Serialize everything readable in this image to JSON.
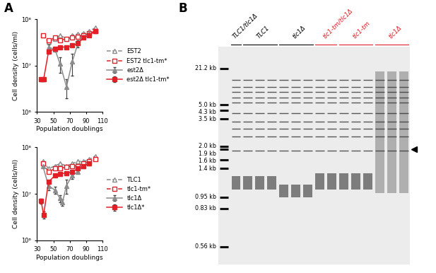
{
  "chart_data": [
    {
      "type": "line",
      "label": "A",
      "log": "y",
      "x_label": "Population doublings",
      "y_label": "Cell density (cells/ml)",
      "xlim": [
        30,
        110
      ],
      "xticks": [
        30,
        50,
        70,
        90,
        110
      ],
      "ylim": [
        1000000,
        100000000
      ],
      "yticks": [
        {
          "value": 1000000,
          "label": "10⁶"
        },
        {
          "value": 10000000,
          "label": "10⁷"
        },
        {
          "value": 100000000,
          "label": "10⁸"
        }
      ],
      "legend": "center left",
      "series": [
        {
          "name": "EST2",
          "color": "#8c8c8c",
          "line_style": "dashed",
          "marker": "triangle-open",
          "x": [
            37,
            44,
            52,
            58,
            66,
            73,
            80,
            87,
            94,
            101
          ],
          "values": [
            45000000,
            32000000,
            38000000,
            45000000,
            38000000,
            45000000,
            48000000,
            50000000,
            55000000,
            65000000
          ]
        },
        {
          "name": "EST2 tlc1-tm*",
          "color": "#e41e26",
          "line_style": "dashed",
          "marker": "square-open",
          "x": [
            37,
            44,
            52,
            58,
            66,
            73,
            80,
            87,
            94,
            101
          ],
          "values": [
            45000000,
            35000000,
            40000000,
            35000000,
            38000000,
            40000000,
            42000000,
            45000000,
            50000000,
            55000000
          ]
        },
        {
          "name": "est2Δ",
          "color": "#8c8c8c",
          "line_style": "solid",
          "marker": "triangle",
          "x": [
            44,
            52,
            58,
            66,
            73,
            80,
            87,
            94
          ],
          "values": [
            25000000,
            22000000,
            11000000,
            3500000,
            12000000,
            30000000,
            42000000,
            50000000
          ],
          "errors": [
            3000000,
            2000000,
            4000000,
            1500000,
            6000000,
            5000000,
            null,
            null
          ]
        },
        {
          "name": "est2Δ tlc1-tm*",
          "color": "#e41e26",
          "line_style": "solid",
          "marker": "square",
          "x": [
            35,
            38,
            44,
            52,
            58,
            66,
            73,
            80,
            87,
            94,
            101
          ],
          "values": [
            5000000,
            5000000,
            20000000,
            23000000,
            25000000,
            25000000,
            27000000,
            30000000,
            40000000,
            45000000,
            55000000
          ],
          "errors": [
            500000,
            500000,
            2000000,
            null,
            null,
            null,
            null,
            null,
            null,
            null,
            null
          ]
        }
      ]
    },
    {
      "type": "line",
      "log": "y",
      "x_label": "Population doublings",
      "y_label": "Cell density (cells/ml)",
      "xlim": [
        30,
        110
      ],
      "xticks": [
        30,
        50,
        70,
        90,
        110
      ],
      "ylim": [
        1000000,
        100000000
      ],
      "yticks": [
        {
          "value": 1000000,
          "label": "10⁶"
        },
        {
          "value": 10000000,
          "label": "10⁷"
        },
        {
          "value": 100000000,
          "label": "10⁸"
        }
      ],
      "legend": "center left",
      "series": [
        {
          "name": "TLC1",
          "color": "#8c8c8c",
          "line_style": "dashed",
          "marker": "triangle-open",
          "x": [
            37,
            44,
            52,
            58,
            66,
            73,
            80,
            87,
            94,
            101
          ],
          "values": [
            50000000,
            35000000,
            40000000,
            45000000,
            40000000,
            45000000,
            50000000,
            50000000,
            55000000,
            65000000
          ]
        },
        {
          "name": "tlc1-tm*",
          "color": "#e41e26",
          "line_style": "dashed",
          "marker": "square-open",
          "x": [
            37,
            44,
            52,
            58,
            66,
            73,
            80,
            87,
            94,
            101
          ],
          "values": [
            45000000,
            30000000,
            35000000,
            35000000,
            38000000,
            40000000,
            40000000,
            45000000,
            50000000,
            55000000
          ]
        },
        {
          "name": "tlc1Δ",
          "color": "#8c8c8c",
          "line_style": "solid",
          "marker": "triangle",
          "x": [
            37,
            44,
            52,
            58,
            61,
            66,
            73,
            80,
            87,
            94
          ],
          "values": [
            40000000,
            15000000,
            12000000,
            8000000,
            6500000,
            15000000,
            25000000,
            30000000,
            40000000,
            45000000
          ],
          "errors": [
            null,
            3000000,
            2000000,
            1500000,
            1000000,
            5000000,
            4000000,
            null,
            null,
            null
          ]
        },
        {
          "name": "tlc1Δ*",
          "color": "#e41e26",
          "line_style": "solid",
          "marker": "square",
          "x": [
            35,
            38,
            44,
            52,
            58,
            66,
            73,
            80,
            87,
            94
          ],
          "values": [
            7000000,
            3500000,
            18000000,
            25000000,
            27000000,
            28000000,
            30000000,
            35000000,
            40000000,
            45000000
          ],
          "errors": [
            800000,
            600000,
            null,
            null,
            null,
            null,
            null,
            null,
            null,
            null
          ]
        }
      ]
    }
  ],
  "gel": {
    "label": "B",
    "groups": [
      {
        "name": "TLC1/tlc1Δ",
        "color": "#000000"
      },
      {
        "name": "TLC1",
        "color": "#000000"
      },
      {
        "name": "tlc1Δ",
        "color": "#000000"
      },
      {
        "name": "tlc1-tm/tlc1Δ",
        "color": "#e41e26"
      },
      {
        "name": "tlc1-tm",
        "color": "#e41e26"
      },
      {
        "name": "tlc1Δ",
        "color": "#e41e26"
      }
    ],
    "ladder": [
      {
        "value": 21.2,
        "label": "21.2 kb"
      },
      {
        "value": 5.0,
        "label": "5.0 kb"
      },
      {
        "value": 4.3,
        "label": "4.3 kb"
      },
      {
        "value": 3.5,
        "label": "3.5 kb"
      },
      {
        "value": 2.0,
        "label": "2.0 kb"
      },
      {
        "value": 1.9,
        "label": "1.9 kb"
      },
      {
        "value": 1.6,
        "label": "1.6 kb"
      },
      {
        "value": 1.4,
        "label": "1.4 kb"
      },
      {
        "value": 0.95,
        "label": "0.95 kb"
      },
      {
        "value": 0.83,
        "label": "0.83 kb"
      },
      {
        "value": 0.56,
        "label": "0.56 kb"
      }
    ]
  }
}
